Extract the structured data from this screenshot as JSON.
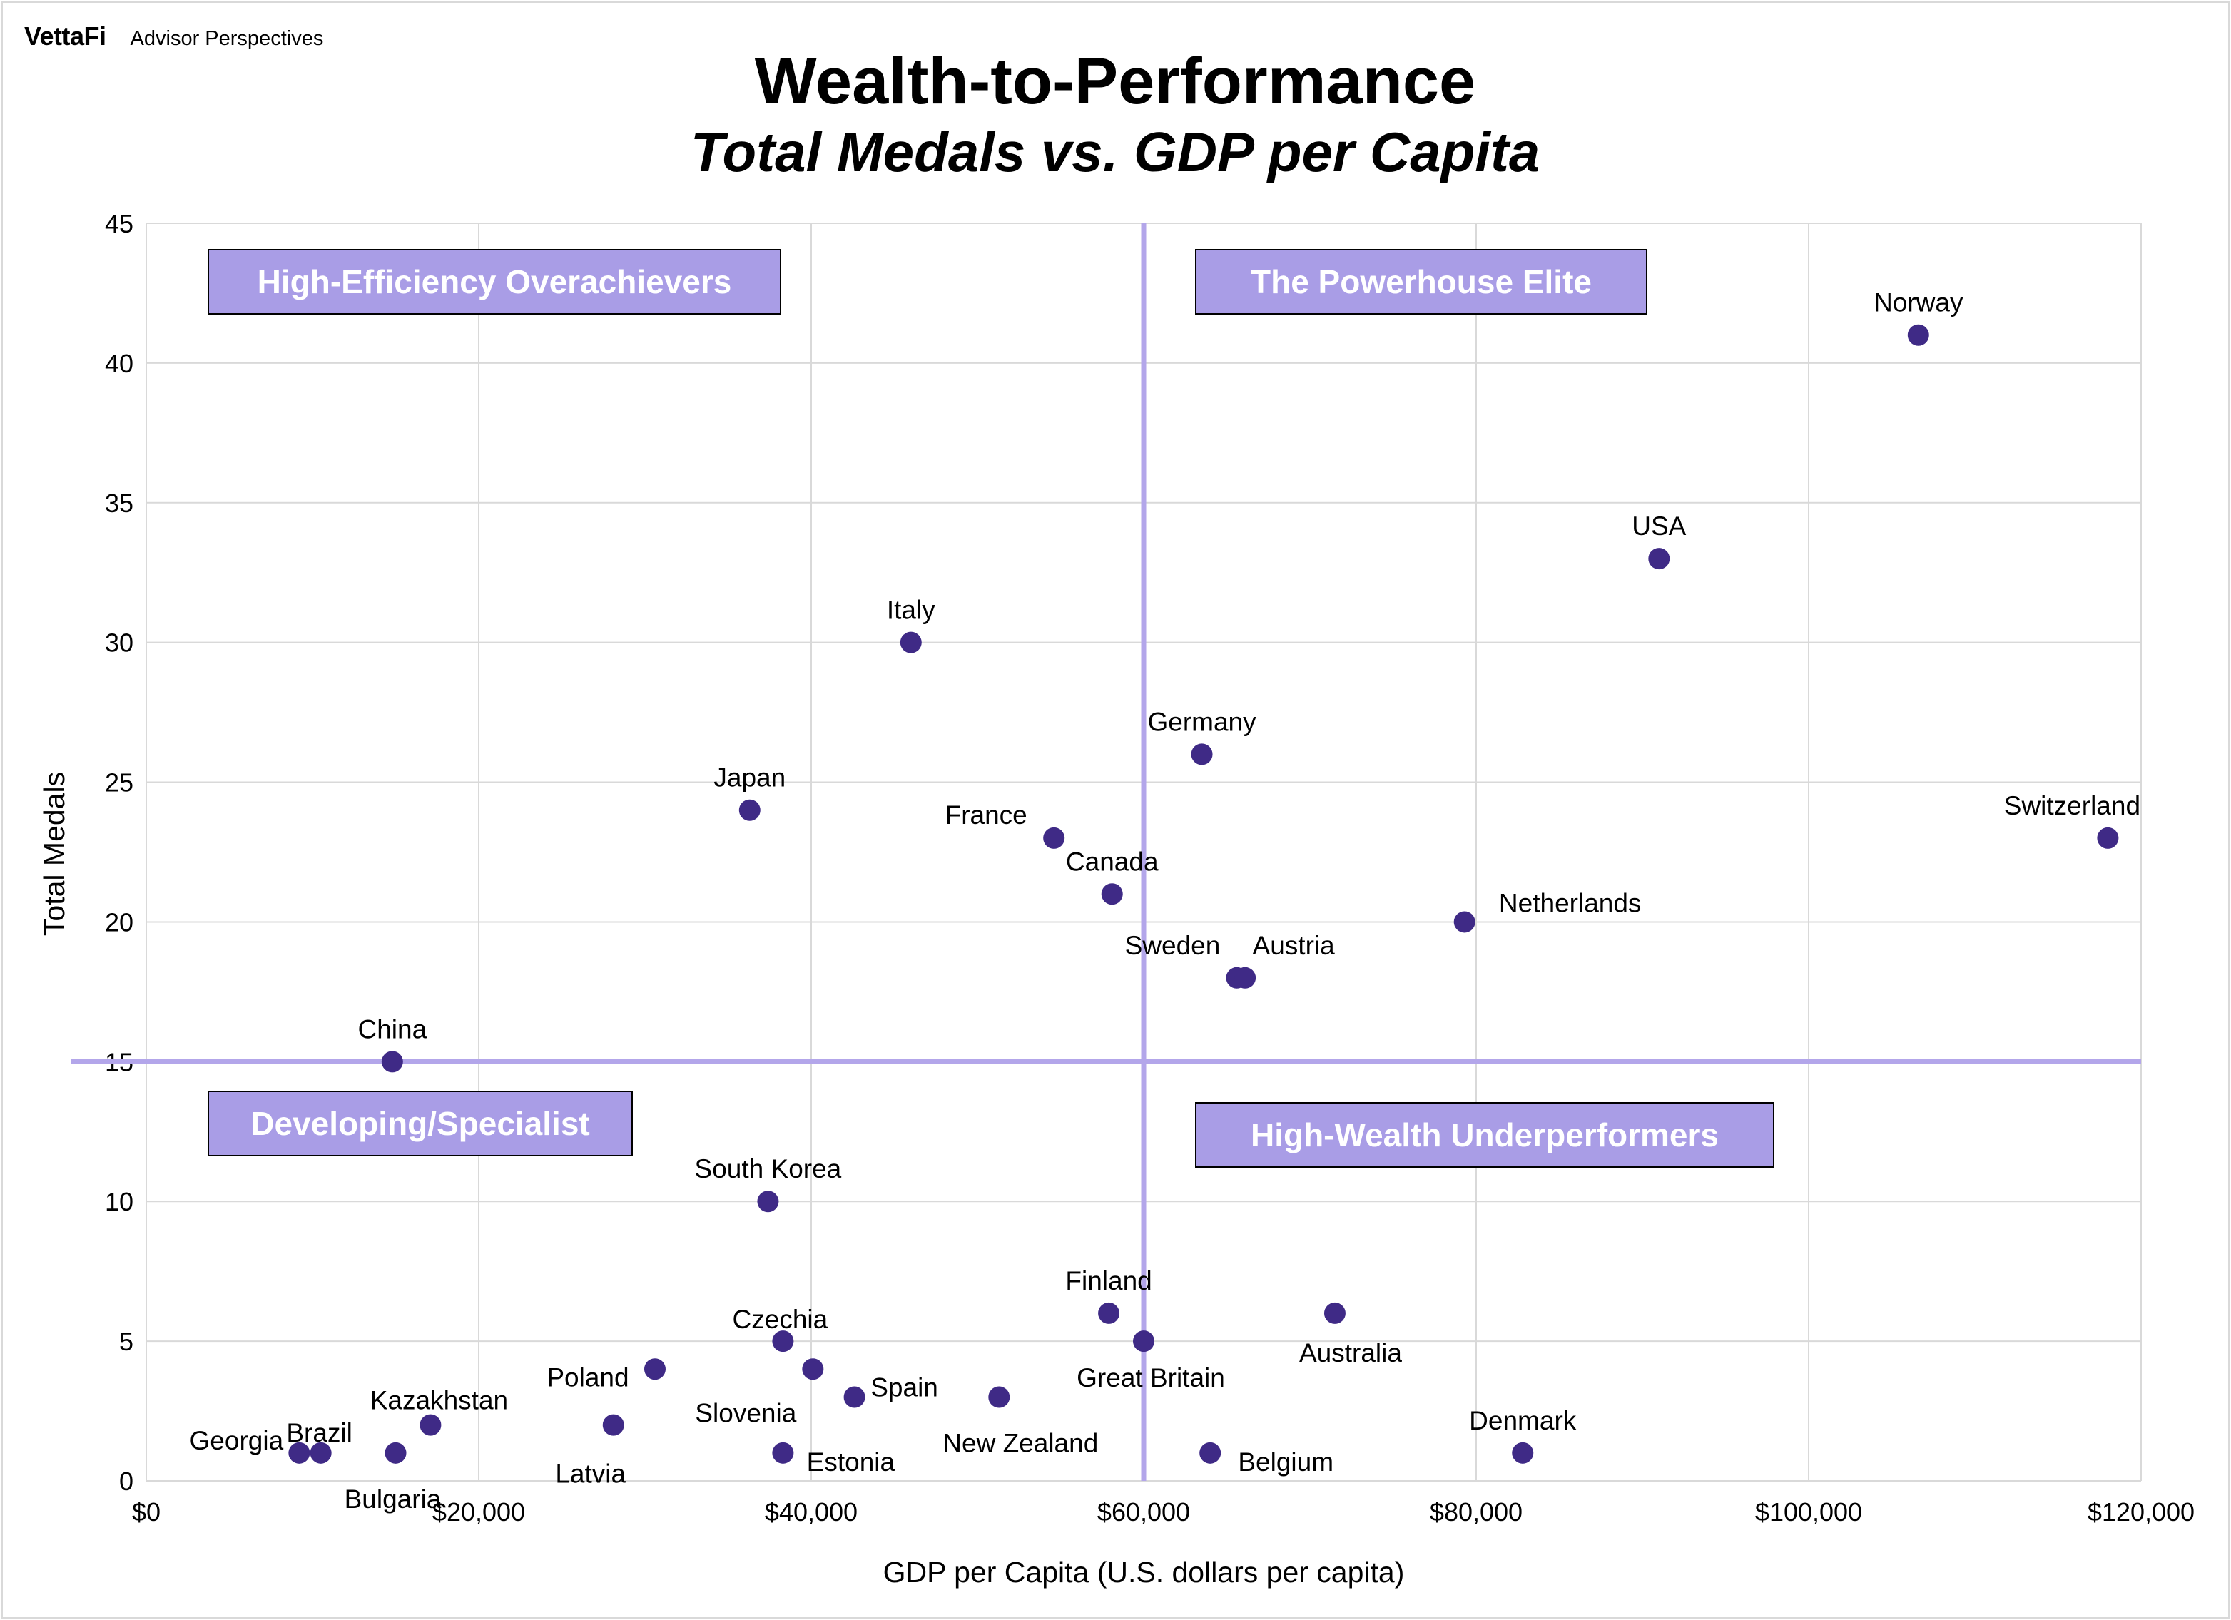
{
  "brand": {
    "logo": "VettaFi",
    "name": "Advisor Perspectives"
  },
  "title": "Wealth-to-Performance",
  "subtitle": "Total Medals vs. GDP per Capita",
  "colors": {
    "point": "#3f2a86",
    "divider": "#b3a6ea",
    "quadrant_fill": "#a99de6",
    "grid": "#d9d9d9"
  },
  "quadrants": {
    "top_left": "High-Efficiency Overachievers",
    "top_right": "The Powerhouse Elite",
    "bottom_left": "Developing/Specialist",
    "bottom_right": "High-Wealth Underperformers"
  },
  "chart_data": {
    "type": "scatter",
    "title": "Wealth-to-Performance",
    "subtitle": "Total Medals vs. GDP per Capita",
    "xlabel": "GDP per Capita (U.S. dollars per capita)",
    "ylabel": "Total Medals",
    "xlim": [
      0,
      120000
    ],
    "ylim": [
      0,
      45
    ],
    "xticks": [
      0,
      20000,
      40000,
      60000,
      80000,
      100000,
      120000
    ],
    "xtick_labels": [
      "$0",
      "$20,000",
      "$40,000",
      "$60,000",
      "$80,000",
      "$100,000",
      "$120,000"
    ],
    "yticks": [
      0,
      5,
      10,
      15,
      20,
      25,
      30,
      35,
      40,
      45
    ],
    "ytick_labels": [
      "0",
      "5",
      "10",
      "15",
      "20",
      "25",
      "30",
      "35",
      "40",
      "45"
    ],
    "grid": true,
    "dividers": {
      "x": 60000,
      "y": 15
    },
    "points": [
      {
        "label": "Norway",
        "x": 106600,
        "y": 41
      },
      {
        "label": "USA",
        "x": 91000,
        "y": 33
      },
      {
        "label": "Italy",
        "x": 46000,
        "y": 30
      },
      {
        "label": "Germany",
        "x": 63500,
        "y": 26
      },
      {
        "label": "Japan",
        "x": 36300,
        "y": 24
      },
      {
        "label": "France",
        "x": 54600,
        "y": 23
      },
      {
        "label": "Switzerland",
        "x": 118000,
        "y": 23
      },
      {
        "label": "Canada",
        "x": 58100,
        "y": 21
      },
      {
        "label": "Netherlands",
        "x": 79300,
        "y": 20
      },
      {
        "label": "Sweden",
        "x": 65600,
        "y": 18
      },
      {
        "label": "Austria",
        "x": 66100,
        "y": 18
      },
      {
        "label": "China",
        "x": 14800,
        "y": 15
      },
      {
        "label": "South Korea",
        "x": 37400,
        "y": 10
      },
      {
        "label": "Finland",
        "x": 57900,
        "y": 6
      },
      {
        "label": "Australia",
        "x": 71500,
        "y": 6
      },
      {
        "label": "Czechia",
        "x": 38300,
        "y": 5
      },
      {
        "label": "Great Britain",
        "x": 60000,
        "y": 5
      },
      {
        "label": "Poland",
        "x": 30600,
        "y": 4
      },
      {
        "label": "Slovenia",
        "x": 40100,
        "y": 4
      },
      {
        "label": "Spain",
        "x": 42600,
        "y": 3
      },
      {
        "label": "New Zealand",
        "x": 51300,
        "y": 3
      },
      {
        "label": "Kazakhstan",
        "x": 17100,
        "y": 2
      },
      {
        "label": "Latvia",
        "x": 28100,
        "y": 2
      },
      {
        "label": "Georgia",
        "x": 9200,
        "y": 1
      },
      {
        "label": "Brazil",
        "x": 10500,
        "y": 1
      },
      {
        "label": "Bulgaria",
        "x": 15000,
        "y": 1
      },
      {
        "label": "Estonia",
        "x": 38300,
        "y": 1
      },
      {
        "label": "Belgium",
        "x": 64000,
        "y": 1
      },
      {
        "label": "Denmark",
        "x": 82800,
        "y": 1
      }
    ]
  }
}
